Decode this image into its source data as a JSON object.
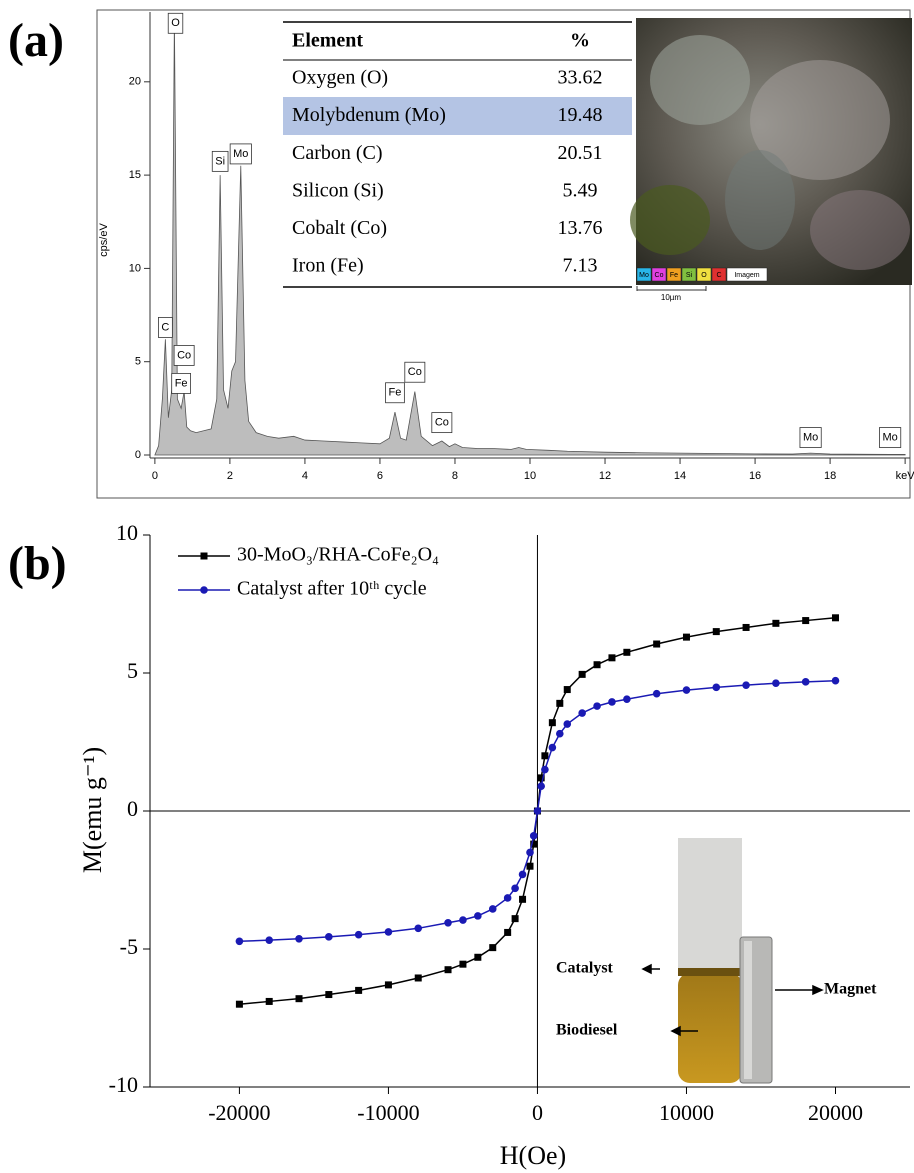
{
  "panel_labels": [
    "(a)",
    "(b)"
  ],
  "chart_data": [
    {
      "type": "area",
      "y_label": "cps/eV",
      "x": [
        0,
        0.1,
        0.2,
        0.28,
        0.36,
        0.45,
        0.52,
        0.6,
        0.7,
        0.78,
        0.85,
        0.95,
        1.1,
        1.3,
        1.5,
        1.65,
        1.74,
        1.83,
        1.95,
        2.05,
        2.15,
        2.29,
        2.4,
        2.5,
        2.7,
        3.0,
        3.3,
        3.7,
        4.0,
        4.5,
        5.0,
        5.5,
        6.0,
        6.25,
        6.4,
        6.55,
        6.7,
        6.93,
        7.1,
        7.4,
        7.65,
        7.85,
        8.0,
        8.2,
        8.6,
        9.0,
        9.5,
        9.7,
        9.9,
        10.5,
        11,
        12,
        13,
        14,
        15,
        16,
        17,
        17.48,
        18,
        19,
        20
      ],
      "values": [
        0,
        0.5,
        3.0,
        6.2,
        2.0,
        3.5,
        23.5,
        3.0,
        2.5,
        3.4,
        1.5,
        1.3,
        1.2,
        1.3,
        1.4,
        3.0,
        15.0,
        3.5,
        2.5,
        4.5,
        5.0,
        15.5,
        4.0,
        1.8,
        1.2,
        1.0,
        0.9,
        1.0,
        0.8,
        0.75,
        0.7,
        0.65,
        0.6,
        0.9,
        2.3,
        0.9,
        0.8,
        3.4,
        1.0,
        0.5,
        0.75,
        0.45,
        0.6,
        0.4,
        0.35,
        0.35,
        0.3,
        0.4,
        0.3,
        0.25,
        0.2,
        0.15,
        0.12,
        0.1,
        0.08,
        0.06,
        0.05,
        0.1,
        0.05,
        0.04,
        0.03
      ],
      "color": "#bdbdbd",
      "xlim": [
        -0.13,
        20.13
      ],
      "xticks": [
        0,
        2,
        4,
        6,
        8,
        10,
        12,
        14,
        16,
        18,
        {
          "value": 20,
          "label": "keV"
        }
      ],
      "ylim": [
        0,
        23.5
      ],
      "yticks": [
        0,
        5,
        10,
        15,
        20
      ],
      "peak_labels": [
        "O",
        "Si",
        "Mo",
        "C",
        "Co",
        "Fe",
        "Fe",
        "Co",
        "Co",
        "Mo",
        "Mo"
      ]
    },
    {
      "type": "line",
      "x_label": "H(Oe)",
      "y_label": "M(emu g⁻¹)",
      "x": [
        -20000,
        -18000,
        -16000,
        -14000,
        -12000,
        -10000,
        -8000,
        -6000,
        -5000,
        -4000,
        -3000,
        -2000,
        -1500,
        -1000,
        -500,
        -250,
        0,
        250,
        500,
        1000,
        1500,
        2000,
        3000,
        4000,
        5000,
        6000,
        8000,
        10000,
        12000,
        14000,
        16000,
        18000,
        20000
      ],
      "series": [
        {
          "name": "30-MoO₃/RHA-CoFe₂O₄",
          "color": "#000000",
          "marker": "square",
          "values": [
            -7.0,
            -6.9,
            -6.8,
            -6.65,
            -6.5,
            -6.3,
            -6.05,
            -5.75,
            -5.55,
            -5.3,
            -4.95,
            -4.4,
            -3.9,
            -3.2,
            -2.0,
            -1.2,
            0,
            1.2,
            2.0,
            3.2,
            3.9,
            4.4,
            4.95,
            5.3,
            5.55,
            5.75,
            6.05,
            6.3,
            6.5,
            6.65,
            6.8,
            6.9,
            7.0
          ]
        },
        {
          "name": "Catalyst after 10ᵗʰ cycle",
          "color": "#1a1ab4",
          "marker": "circle",
          "values": [
            -4.72,
            -4.68,
            -4.63,
            -4.56,
            -4.48,
            -4.38,
            -4.25,
            -4.05,
            -3.95,
            -3.8,
            -3.55,
            -3.15,
            -2.8,
            -2.3,
            -1.5,
            -0.9,
            0,
            0.9,
            1.5,
            2.3,
            2.8,
            3.15,
            3.55,
            3.8,
            3.95,
            4.05,
            4.25,
            4.38,
            4.48,
            4.56,
            4.63,
            4.68,
            4.72
          ]
        }
      ],
      "xlim": [
        -26000,
        25000
      ],
      "xticks": [
        -20000,
        -10000,
        0,
        10000,
        20000
      ],
      "ylim": [
        -10,
        10
      ],
      "yticks": [
        -10,
        -5,
        0,
        5,
        10
      ],
      "zero_lines": true,
      "legend": "upper left",
      "annotations": [
        "Catalyst",
        "Biodiesel",
        "Magnet"
      ]
    }
  ],
  "table": {
    "header": [
      "Element",
      "%"
    ],
    "rows": [
      [
        "Oxygen (O)",
        "33.62"
      ],
      [
        "Molybdenum (Mo)",
        "19.48"
      ],
      [
        "Carbon (C)",
        "20.51"
      ],
      [
        "Silicon (Si)",
        "5.49"
      ],
      [
        "Cobalt (Co)",
        "13.76"
      ],
      [
        "Iron (Fe)",
        "7.13"
      ]
    ]
  },
  "inset_image": {
    "legend": [
      "Mo",
      "Co",
      "Fe",
      "Si",
      "O",
      "C",
      "Imagem"
    ],
    "scale": "10µm"
  }
}
